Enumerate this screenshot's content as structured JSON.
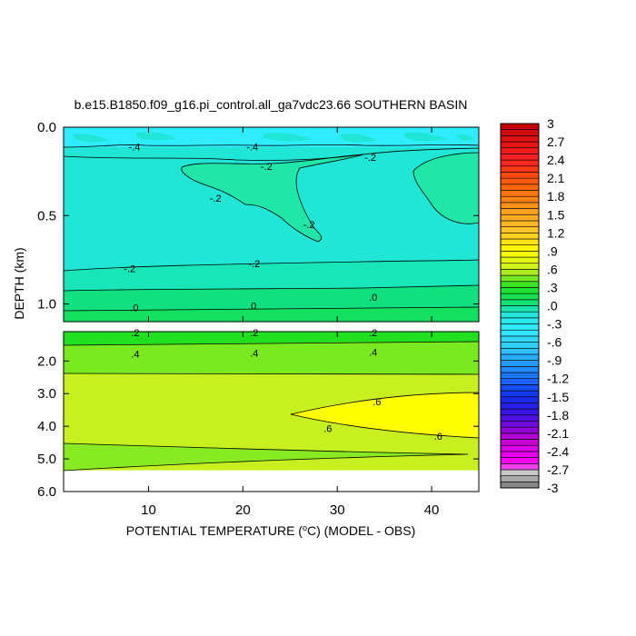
{
  "chart_data": {
    "type": "heatmap",
    "title": "b.e15.B1850.f09_g16.pi_control.all_ga7vdc23.66 SOUTHERN BASIN",
    "xlabel_prefix": "POTENTIAL TEMPERATURE (",
    "xlabel_degree": "o",
    "xlabel_suffix": "C) (MODEL - OBS)",
    "ylabel": "DEPTH (km)",
    "xlim": [
      1,
      45
    ],
    "x_ticks": [
      10,
      20,
      30,
      40
    ],
    "x_tick_labels": [
      "10",
      "20",
      "30",
      "40"
    ],
    "upper_panel": {
      "ylim": [
        0.0,
        1.1
      ],
      "y_ticks": [
        0.0,
        0.5,
        1.0
      ],
      "y_tick_labels": [
        "0.0",
        "0.5",
        "1.0"
      ]
    },
    "lower_panel": {
      "ylim": [
        1.1,
        6.0
      ],
      "y_ticks": [
        2.0,
        3.0,
        4.0,
        5.0,
        6.0
      ],
      "y_tick_labels": [
        "2.0",
        "3.0",
        "4.0",
        "5.0",
        "6.0"
      ],
      "data_bottom_depth": 5.35
    },
    "colorbar": {
      "levels": [
        -3.0,
        -2.9,
        -2.8,
        -2.7,
        -2.6,
        -2.5,
        -2.4,
        -2.3,
        -2.2,
        -2.1,
        -2.0,
        -1.9,
        -1.8,
        -1.7,
        -1.6,
        -1.5,
        -1.4,
        -1.3,
        -1.2,
        -1.1,
        -1.0,
        -0.9,
        -0.8,
        -0.7,
        -0.6,
        -0.5,
        -0.4,
        -0.3,
        -0.2,
        -0.1,
        0.0,
        0.1,
        0.2,
        0.3,
        0.4,
        0.5,
        0.6,
        0.7,
        0.8,
        0.9,
        1.0,
        1.1,
        1.2,
        1.3,
        1.4,
        1.5,
        1.6,
        1.7,
        1.8,
        1.9,
        2.0,
        2.1,
        2.2,
        2.3,
        2.4,
        2.5,
        2.6,
        2.7,
        2.8,
        2.9,
        3.0
      ],
      "tick_labels": [
        "3",
        "2.7",
        "2.4",
        "2.1",
        "1.8",
        "1.5",
        "1.2",
        ".9",
        ".6",
        ".3",
        ".0",
        "-.3",
        "-.6",
        "-.9",
        "-1.2",
        "-1.5",
        "-1.8",
        "-2.1",
        "-2.4",
        "-2.7",
        "-3"
      ],
      "anchor_colors": [
        [
          -3.0,
          "#777777"
        ],
        [
          -2.75,
          "#c8c8c8"
        ],
        [
          -2.6,
          "#ff00ff"
        ],
        [
          -2.2,
          "#c000d0"
        ],
        [
          -1.8,
          "#4010e0"
        ],
        [
          -1.5,
          "#1030f0"
        ],
        [
          -1.1,
          "#2080ff"
        ],
        [
          -0.7,
          "#30c8ff"
        ],
        [
          -0.4,
          "#30ecff"
        ],
        [
          -0.1,
          "#20e6d6"
        ],
        [
          0.0,
          "#10e080"
        ],
        [
          0.3,
          "#20e020"
        ],
        [
          0.6,
          "#c8f020"
        ],
        [
          0.9,
          "#ffff00"
        ],
        [
          1.2,
          "#ffc828"
        ],
        [
          1.6,
          "#ff9a20"
        ],
        [
          2.0,
          "#ff6000"
        ],
        [
          2.4,
          "#ff2020"
        ],
        [
          2.8,
          "#d81010"
        ],
        [
          3.0,
          "#c00000"
        ]
      ]
    },
    "contour_labels": [
      {
        "text": "-.4",
        "x": 8.5,
        "depth": 0.11
      },
      {
        "text": "-.4",
        "x": 21.0,
        "depth": 0.11
      },
      {
        "text": "-.2",
        "x": 22.5,
        "depth": 0.22
      },
      {
        "text": "-.2",
        "x": 33.5,
        "depth": 0.17
      },
      {
        "text": "-.2",
        "x": 17.1,
        "depth": 0.4
      },
      {
        "text": "-.2",
        "x": 27.0,
        "depth": 0.55
      },
      {
        "text": "-.2",
        "x": 8.0,
        "depth": 0.8
      },
      {
        "text": "-.2",
        "x": 21.2,
        "depth": 0.77
      },
      {
        "text": ".0",
        "x": 8.5,
        "depth": 1.02
      },
      {
        "text": ".0",
        "x": 21.0,
        "depth": 1.01
      },
      {
        "text": ".0",
        "x": 33.8,
        "depth": 0.96
      },
      {
        "text": ".2",
        "x": 8.6,
        "depth": 1.13
      },
      {
        "text": ".2",
        "x": 21.2,
        "depth": 1.13
      },
      {
        "text": ".2",
        "x": 33.8,
        "depth": 1.13
      },
      {
        "text": ".4",
        "x": 8.6,
        "depth": 1.78
      },
      {
        "text": ".4",
        "x": 21.2,
        "depth": 1.76
      },
      {
        "text": ".4",
        "x": 33.8,
        "depth": 1.72
      },
      {
        "text": ".6",
        "x": 34.2,
        "depth": 3.25
      },
      {
        "text": ".6",
        "x": 29.0,
        "depth": 4.07
      },
      {
        "text": ".6",
        "x": 40.7,
        "depth": 4.3
      }
    ]
  }
}
